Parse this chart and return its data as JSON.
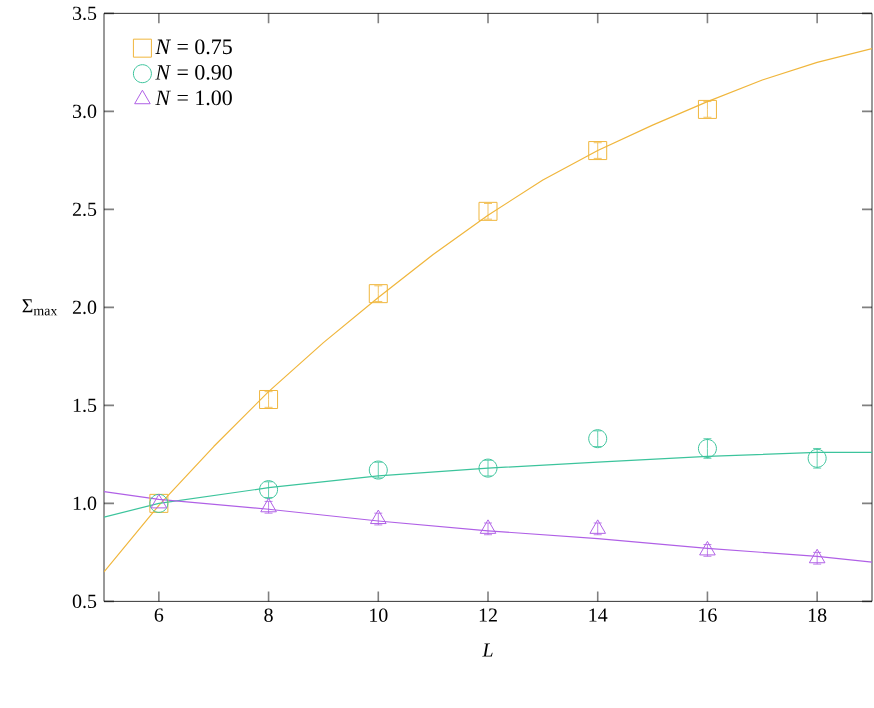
{
  "chart_data": {
    "type": "scatter",
    "xlabel": "L",
    "ylabel": "Σ$_{max}$",
    "xlim": [
      5,
      19
    ],
    "ylim": [
      0.5,
      3.5
    ],
    "xticks": [
      6,
      8,
      10,
      12,
      14,
      16,
      18
    ],
    "yticks": [
      {
        "value": 0.5,
        "label": "0.5"
      },
      {
        "value": 1.0,
        "label": "1.0"
      },
      {
        "value": 1.5,
        "label": "1.5"
      },
      {
        "value": 2.0,
        "label": "2.0"
      },
      {
        "value": 2.5,
        "label": "2.5"
      },
      {
        "value": 3.0,
        "label": "3.0"
      },
      {
        "value": 3.5,
        "label": "3.5"
      }
    ],
    "grid": false,
    "legend": "top left",
    "series": [
      {
        "name": "*N* = 0.75",
        "color": "#f0b63c",
        "marker": "square",
        "x": [
          6,
          8,
          10,
          12,
          14,
          16
        ],
        "values": [
          1.0,
          1.53,
          2.07,
          2.49,
          2.8,
          3.01
        ],
        "errors": [
          null,
          0.04,
          0.04,
          0.04,
          0.04,
          0.04
        ]
      },
      {
        "name": "*N* = 0.90",
        "color": "#3cc49c",
        "marker": "circle",
        "x": [
          6,
          8,
          10,
          12,
          14,
          16,
          18
        ],
        "values": [
          1.0,
          1.07,
          1.17,
          1.18,
          1.33,
          1.28,
          1.23
        ],
        "errors": [
          null,
          0.04,
          0.04,
          0.04,
          0.04,
          0.05,
          0.05
        ]
      },
      {
        "name": "*N* = 1.00",
        "color": "#b060e6",
        "marker": "triangle",
        "x": [
          6,
          8,
          10,
          12,
          14,
          16,
          18
        ],
        "values": [
          1.0,
          0.98,
          0.92,
          0.87,
          0.87,
          0.76,
          0.72
        ],
        "errors": [
          null,
          0.03,
          0.03,
          0.03,
          0.03,
          0.03,
          0.03
        ]
      },
      {
        "type": "line",
        "color": "#f0b63c",
        "x": [
          5,
          6,
          7,
          8,
          9,
          10,
          11,
          12,
          13,
          14,
          15,
          16,
          17,
          18,
          19
        ],
        "values": [
          0.65,
          0.99,
          1.29,
          1.57,
          1.82,
          2.05,
          2.27,
          2.47,
          2.65,
          2.8,
          2.93,
          3.05,
          3.16,
          3.25,
          3.32
        ]
      },
      {
        "type": "line",
        "color": "#3cc49c",
        "x": [
          5,
          6,
          8,
          10,
          12,
          14,
          16,
          18,
          19
        ],
        "values": [
          0.93,
          1.0,
          1.08,
          1.14,
          1.18,
          1.21,
          1.24,
          1.26,
          1.26
        ]
      },
      {
        "type": "line",
        "color": "#b060e6",
        "x": [
          5,
          6,
          8,
          10,
          12,
          14,
          16,
          18,
          19
        ],
        "values": [
          1.06,
          1.02,
          0.97,
          0.91,
          0.86,
          0.82,
          0.77,
          0.73,
          0.7
        ]
      }
    ]
  }
}
